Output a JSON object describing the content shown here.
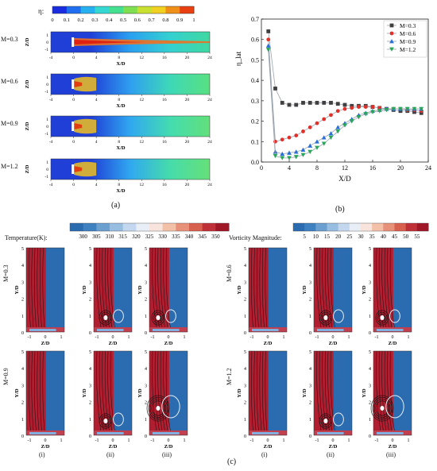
{
  "panel_a": {
    "letter": "(a)",
    "eta_symbol": "η:",
    "colorbar_ticks": [
      "0",
      "0.1",
      "0.2",
      "0.3",
      "0.4",
      "0.5",
      "0.6",
      "0.7",
      "0.8",
      "0.9",
      "1"
    ],
    "rows": [
      {
        "label": "M=0.3"
      },
      {
        "label": "M=0.6"
      },
      {
        "label": "M=0.9"
      },
      {
        "label": "M=1.2"
      }
    ],
    "x_ticks": [
      "-4",
      "0",
      "4",
      "8",
      "12",
      "16",
      "20",
      "24"
    ],
    "y_ticks": [
      "1",
      "0",
      "-1"
    ],
    "xlabel": "X/D",
    "ylabel": "Z/D"
  },
  "panel_b": {
    "letter": "(b)",
    "chart_data": {
      "type": "line",
      "xlabel": "X/D",
      "ylabel": "η_lat",
      "xlim": [
        0,
        24
      ],
      "ylim": [
        0.0,
        0.7
      ],
      "x_ticks": [
        "0",
        "4",
        "8",
        "12",
        "16",
        "20",
        "24"
      ],
      "y_ticks": [
        "0.0",
        "0.1",
        "0.2",
        "0.3",
        "0.4",
        "0.5",
        "0.6",
        "0.7"
      ],
      "legend_position": "top-right",
      "series": [
        {
          "name": "M=0.3",
          "color": "#404040",
          "marker": "square",
          "x": [
            1,
            2,
            3,
            4,
            5,
            6,
            7,
            8,
            9,
            10,
            11,
            12,
            13,
            14,
            15,
            16,
            17,
            18,
            19,
            20,
            21,
            22,
            23
          ],
          "y": [
            0.64,
            0.36,
            0.29,
            0.28,
            0.28,
            0.29,
            0.29,
            0.29,
            0.29,
            0.29,
            0.285,
            0.28,
            0.275,
            0.275,
            0.275,
            0.27,
            0.265,
            0.26,
            0.255,
            0.25,
            0.25,
            0.245,
            0.24
          ]
        },
        {
          "name": "M=0.6",
          "color": "#e0302a",
          "marker": "circle",
          "x": [
            1,
            2,
            3,
            4,
            5,
            6,
            7,
            8,
            9,
            10,
            11,
            12,
            13,
            14,
            15,
            16,
            17,
            18,
            19,
            20,
            21,
            22,
            23
          ],
          "y": [
            0.6,
            0.1,
            0.11,
            0.12,
            0.13,
            0.15,
            0.17,
            0.19,
            0.21,
            0.23,
            0.25,
            0.26,
            0.265,
            0.27,
            0.27,
            0.27,
            0.265,
            0.26,
            0.26,
            0.26,
            0.255,
            0.255,
            0.25
          ]
        },
        {
          "name": "M=0.9",
          "color": "#2a6fd8",
          "marker": "triangle-up",
          "x": [
            1,
            2,
            3,
            4,
            5,
            6,
            7,
            8,
            9,
            10,
            11,
            12,
            13,
            14,
            15,
            16,
            17,
            18,
            19,
            20,
            21,
            22,
            23
          ],
          "y": [
            0.57,
            0.05,
            0.04,
            0.045,
            0.05,
            0.06,
            0.08,
            0.1,
            0.12,
            0.14,
            0.17,
            0.19,
            0.21,
            0.23,
            0.24,
            0.25,
            0.255,
            0.26,
            0.26,
            0.26,
            0.26,
            0.26,
            0.26
          ]
        },
        {
          "name": "M=1.2",
          "color": "#2aa65a",
          "marker": "triangle-down",
          "x": [
            1,
            2,
            3,
            4,
            5,
            6,
            7,
            8,
            9,
            10,
            11,
            12,
            13,
            14,
            15,
            16,
            17,
            18,
            19,
            20,
            21,
            22,
            23
          ],
          "y": [
            0.55,
            0.03,
            0.02,
            0.02,
            0.025,
            0.035,
            0.05,
            0.07,
            0.09,
            0.12,
            0.15,
            0.18,
            0.2,
            0.22,
            0.235,
            0.245,
            0.25,
            0.255,
            0.26,
            0.26,
            0.26,
            0.26,
            0.26
          ]
        }
      ]
    }
  },
  "panel_c": {
    "letter": "(c)",
    "temp_label": "Temperature(K):",
    "temp_ticks": [
      "300",
      "305",
      "310",
      "315",
      "320",
      "325",
      "330",
      "335",
      "340",
      "345",
      "350"
    ],
    "vort_label": "Vorticity Magnitude:",
    "vort_ticks": [
      "5",
      "10",
      "15",
      "20",
      "25",
      "30",
      "35",
      "40",
      "45",
      "50",
      "55"
    ],
    "ylabel": "Y/D",
    "xlabel": "Z/D",
    "y_ticks": [
      "5",
      "4",
      "3",
      "2",
      "1",
      "0"
    ],
    "x_ticks": [
      "-1",
      "0",
      "1"
    ],
    "groups": [
      {
        "label": "M=0.3"
      },
      {
        "label": "M=0.6"
      },
      {
        "label": "M=0.9"
      },
      {
        "label": "M=1.2"
      }
    ],
    "sub_labels": [
      "(i)",
      "(ii)",
      "(iii)"
    ]
  },
  "colors": {
    "hot": "#b01e30",
    "cold": "#2b6cb0",
    "jet_low": "#1f3fd6"
  }
}
